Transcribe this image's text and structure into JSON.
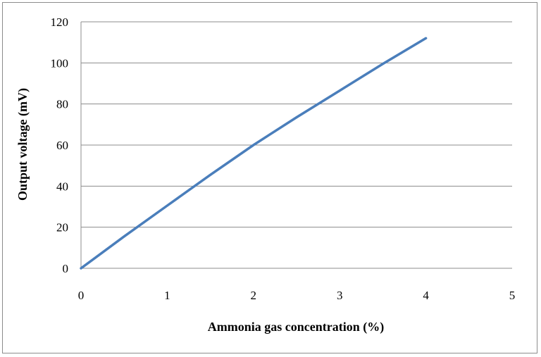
{
  "chart_data": {
    "type": "line",
    "title": "",
    "xlabel": "Ammonia gas concentration (%)",
    "ylabel": "Output voltage (mV)",
    "xlim": [
      0,
      5
    ],
    "ylim": [
      0,
      120
    ],
    "x_ticks": [
      "0",
      "1",
      "2",
      "3",
      "4",
      "5"
    ],
    "y_ticks": [
      "0",
      "20",
      "40",
      "60",
      "80",
      "100",
      "120"
    ],
    "grid": "horizontal",
    "legend": "none",
    "series": [
      {
        "color": "#4a7ebb",
        "points": [
          {
            "x": 0,
            "y": 0
          },
          {
            "x": 0.5,
            "y": 15.5
          },
          {
            "x": 1,
            "y": 30.5
          },
          {
            "x": 1.5,
            "y": 45.5
          },
          {
            "x": 2,
            "y": 60
          },
          {
            "x": 2.5,
            "y": 73.5
          },
          {
            "x": 3,
            "y": 86.5
          },
          {
            "x": 3.5,
            "y": 99.5
          },
          {
            "x": 4,
            "y": 112
          }
        ]
      }
    ],
    "colors": {
      "grid": "#8c8c8c",
      "axis": "#8c8c8c",
      "frame": "#8c8c8c"
    }
  }
}
